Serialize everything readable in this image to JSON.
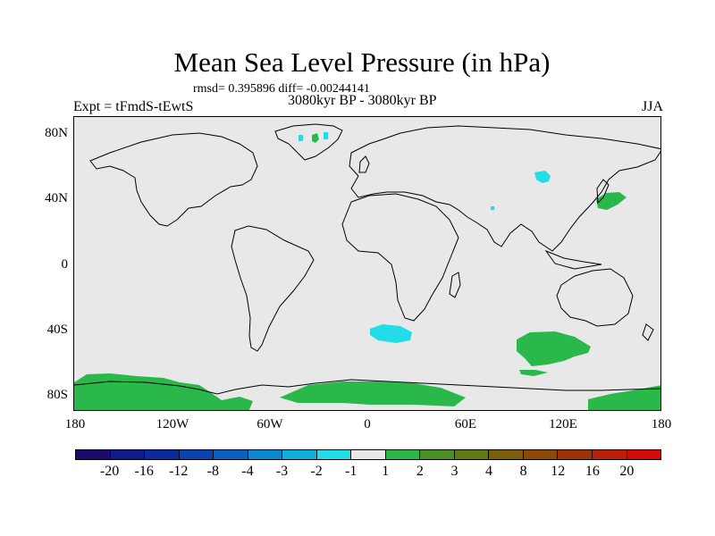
{
  "title": "Mean Sea Level Pressure (in hPa)",
  "stats": "rmsd= 0.395896 diff= -0.00244141",
  "expt": "Expt = tFmdS-tEwtS",
  "period": "3080kyr BP - 3080kyr BP",
  "season": "JJA",
  "axes": {
    "y_ticks": [
      "80N",
      "40N",
      "0",
      "40S",
      "80S"
    ],
    "x_ticks": [
      "180",
      "120W",
      "60W",
      "0",
      "60E",
      "120E",
      "180"
    ]
  },
  "colorbar": {
    "labels": [
      "-20",
      "-16",
      "-12",
      "-8",
      "-4",
      "-3",
      "-2",
      "-1",
      "1",
      "2",
      "3",
      "4",
      "8",
      "12",
      "16",
      "20"
    ],
    "colors": [
      "#1c0a6e",
      "#0f1a8c",
      "#0a2a9e",
      "#0a43b0",
      "#0a5fc2",
      "#0a86d2",
      "#12aedd",
      "#22dce8",
      "#e8e8e8",
      "#2bb84a",
      "#4a8f26",
      "#5e7a10",
      "#7a5e08",
      "#8c4806",
      "#a03208",
      "#b81e0a",
      "#d40a0a"
    ]
  },
  "map_colors": {
    "background": "#e8e8e8",
    "positive": "#2bb84a",
    "negative": "#22dce8",
    "coast": "#000000"
  }
}
